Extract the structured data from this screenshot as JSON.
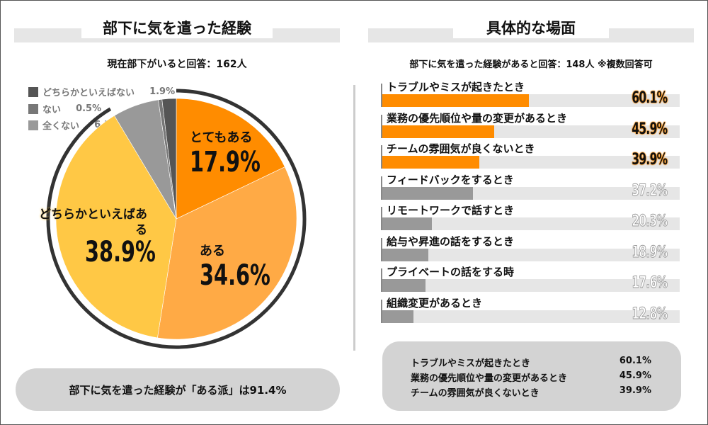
{
  "left": {
    "title": "部下に気を遣った経験",
    "subtitle": "現在部下がいると回答：162人",
    "summary": "部下に気を遣った経験が「ある派」は91.4%"
  },
  "right": {
    "title": "具体的な場面",
    "subtitle": "部下に気を遣った経験があると回答：148人 ※複数回答可",
    "summary": [
      {
        "label": "トラブルやミスが起きたとき",
        "value": "60.1%"
      },
      {
        "label": "業務の優先順位や量の変更があるとき",
        "value": "45.9%"
      },
      {
        "label": "チームの雰囲気が良くないとき",
        "value": "39.9%"
      }
    ]
  },
  "colors": {
    "very": "#ff8c00",
    "yes": "#ffaa45",
    "somewhat": "#ffc845",
    "not_really": "#999999",
    "no": "#777777",
    "rather_no": "#555555",
    "bar_hi": "#ff8c00",
    "bar_lo": "#999999",
    "track": "#e6e6e6"
  },
  "chart_data": [
    {
      "type": "pie",
      "slices": [
        {
          "label": "とてもある",
          "value": 17.9,
          "display": "17.9%",
          "color": "#ff8c00"
        },
        {
          "label": "ある",
          "value": 34.6,
          "display": "34.6%",
          "color": "#ffaa45"
        },
        {
          "label": "どちらかといえばある",
          "value": 38.9,
          "display": "38.9%",
          "color": "#ffc845"
        },
        {
          "label": "全くない",
          "value": 6.2,
          "display": "6.2%",
          "color": "#999999"
        },
        {
          "label": "ない",
          "value": 0.5,
          "display": "0.5%",
          "color": "#777777"
        },
        {
          "label": "どちらかといえばない",
          "value": 1.9,
          "display": "1.9%",
          "color": "#555555"
        }
      ],
      "highlight_ring_total": 91.4
    },
    {
      "type": "bar",
      "orientation": "horizontal",
      "xlim": [
        0,
        100
      ],
      "categories": [
        "トラブルやミスが起きたとき",
        "業務の優先順位や量の変更があるとき",
        "チームの雰囲気が良くないとき",
        "フィードバックをするとき",
        "リモートワークで話すとき",
        "給与や昇進の話をするとき",
        "プライベートの話をする時",
        "組織変更があるとき"
      ],
      "values": [
        60.1,
        45.9,
        39.9,
        37.2,
        20.3,
        18.9,
        17.6,
        12.8
      ],
      "labels": [
        "60.1%",
        "45.9%",
        "39.9%",
        "37.2%",
        "20.3%",
        "18.9%",
        "17.6%",
        "12.8%"
      ],
      "highlighted_top": 3
    }
  ]
}
